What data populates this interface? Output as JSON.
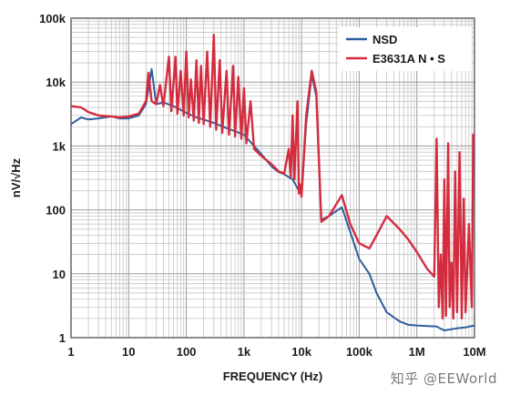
{
  "chart_data": {
    "type": "line",
    "title": "",
    "xlabel": "FREQUENCY (Hz)",
    "ylabel": "nV/√Hz",
    "x_scale": "log",
    "y_scale": "log",
    "xlim": [
      1,
      10000000
    ],
    "ylim": [
      1,
      100000
    ],
    "x_ticks": [
      {
        "value": 1,
        "label": "1"
      },
      {
        "value": 10,
        "label": "10"
      },
      {
        "value": 100,
        "label": "100"
      },
      {
        "value": 1000,
        "label": "1k"
      },
      {
        "value": 10000,
        "label": "10k"
      },
      {
        "value": 100000,
        "label": "100k"
      },
      {
        "value": 1000000,
        "label": "1M"
      },
      {
        "value": 10000000,
        "label": "10M"
      }
    ],
    "y_ticks": [
      {
        "value": 1,
        "label": "1"
      },
      {
        "value": 10,
        "label": "10"
      },
      {
        "value": 100,
        "label": "100"
      },
      {
        "value": 1000,
        "label": "1k"
      },
      {
        "value": 10000,
        "label": "10k"
      },
      {
        "value": 100000,
        "label": "100k"
      }
    ],
    "grid": true,
    "legend_position": "top-right",
    "series": [
      {
        "name": "NSD",
        "color": "#2f5e9e",
        "points": [
          [
            1,
            2200
          ],
          [
            1.5,
            2800
          ],
          [
            2,
            2600
          ],
          [
            3,
            2700
          ],
          [
            5,
            2900
          ],
          [
            7,
            2700
          ],
          [
            10,
            2700
          ],
          [
            15,
            3000
          ],
          [
            20,
            4500
          ],
          [
            25,
            16000
          ],
          [
            30,
            4500
          ],
          [
            40,
            4800
          ],
          [
            60,
            4200
          ],
          [
            100,
            3300
          ],
          [
            150,
            2800
          ],
          [
            200,
            2600
          ],
          [
            300,
            2300
          ],
          [
            500,
            1900
          ],
          [
            700,
            1700
          ],
          [
            1000,
            1500
          ],
          [
            1500,
            1000
          ],
          [
            2000,
            750
          ],
          [
            3000,
            480
          ],
          [
            4000,
            390
          ],
          [
            5000,
            360
          ],
          [
            7000,
            300
          ],
          [
            9000,
            200
          ],
          [
            10000,
            180
          ],
          [
            12000,
            2200
          ],
          [
            15000,
            13000
          ],
          [
            18000,
            6000
          ],
          [
            22000,
            70
          ],
          [
            30000,
            80
          ],
          [
            50000,
            110
          ],
          [
            70000,
            45
          ],
          [
            100000,
            17
          ],
          [
            150000,
            10
          ],
          [
            200000,
            5
          ],
          [
            300000,
            2.5
          ],
          [
            500000,
            1.8
          ],
          [
            700000,
            1.6
          ],
          [
            1000000,
            1.55
          ],
          [
            2000000,
            1.5
          ],
          [
            2200000,
            1.5
          ],
          [
            2500000,
            1.4
          ],
          [
            3000000,
            1.3
          ],
          [
            5000000,
            1.4
          ],
          [
            7000000,
            1.45
          ],
          [
            10000000,
            1.55
          ]
        ]
      },
      {
        "name": "E3631A N • S",
        "color": "#d42c3e",
        "points": [
          [
            1,
            4200
          ],
          [
            1.5,
            4000
          ],
          [
            2,
            3400
          ],
          [
            3,
            3000
          ],
          [
            5,
            2900
          ],
          [
            7,
            2800
          ],
          [
            10,
            2900
          ],
          [
            15,
            3200
          ],
          [
            20,
            5000
          ],
          [
            22,
            14000
          ],
          [
            25,
            5000
          ],
          [
            30,
            4500
          ],
          [
            35,
            9000
          ],
          [
            40,
            4200
          ],
          [
            50,
            25000
          ],
          [
            55,
            3500
          ],
          [
            65,
            25000
          ],
          [
            70,
            3200
          ],
          [
            80,
            15000
          ],
          [
            90,
            3000
          ],
          [
            100,
            30000
          ],
          [
            110,
            2800
          ],
          [
            120,
            11000
          ],
          [
            135,
            2500
          ],
          [
            150,
            22000
          ],
          [
            165,
            2300
          ],
          [
            180,
            18000
          ],
          [
            200,
            2200
          ],
          [
            230,
            30000
          ],
          [
            260,
            2000
          ],
          [
            300,
            55000
          ],
          [
            330,
            1800
          ],
          [
            380,
            22000
          ],
          [
            420,
            1600
          ],
          [
            500,
            15000
          ],
          [
            550,
            1500
          ],
          [
            650,
            18000
          ],
          [
            700,
            1400
          ],
          [
            800,
            12000
          ],
          [
            900,
            1300
          ],
          [
            1000,
            8000
          ],
          [
            1100,
            1100
          ],
          [
            1300,
            5000
          ],
          [
            1500,
            900
          ],
          [
            2000,
            700
          ],
          [
            3000,
            520
          ],
          [
            4000,
            400
          ],
          [
            5000,
            370
          ],
          [
            6000,
            900
          ],
          [
            6500,
            330
          ],
          [
            7000,
            3000
          ],
          [
            7500,
            300
          ],
          [
            8500,
            5000
          ],
          [
            9000,
            180
          ],
          [
            9500,
            250
          ],
          [
            10000,
            160
          ],
          [
            12000,
            3000
          ],
          [
            15000,
            15000
          ],
          [
            18000,
            7000
          ],
          [
            20000,
            600
          ],
          [
            22000,
            65
          ],
          [
            30000,
            80
          ],
          [
            50000,
            170
          ],
          [
            70000,
            60
          ],
          [
            100000,
            30
          ],
          [
            150000,
            25
          ],
          [
            200000,
            40
          ],
          [
            300000,
            80
          ],
          [
            500000,
            50
          ],
          [
            700000,
            35
          ],
          [
            1000000,
            22
          ],
          [
            1500000,
            12
          ],
          [
            2000000,
            9
          ],
          [
            2200000,
            1300
          ],
          [
            2400000,
            3
          ],
          [
            2600000,
            20
          ],
          [
            2800000,
            2
          ],
          [
            3000000,
            300
          ],
          [
            3200000,
            2.2
          ],
          [
            3500000,
            1100
          ],
          [
            3700000,
            3
          ],
          [
            4000000,
            15
          ],
          [
            4300000,
            2
          ],
          [
            4600000,
            400
          ],
          [
            5000000,
            2.5
          ],
          [
            5500000,
            800
          ],
          [
            6000000,
            2
          ],
          [
            6500000,
            150
          ],
          [
            7000000,
            2.5
          ],
          [
            8000000,
            60
          ],
          [
            9000000,
            3
          ],
          [
            9500000,
            1500
          ],
          [
            10000000,
            1500
          ]
        ]
      }
    ]
  },
  "watermark": "知乎 @EEWorld"
}
